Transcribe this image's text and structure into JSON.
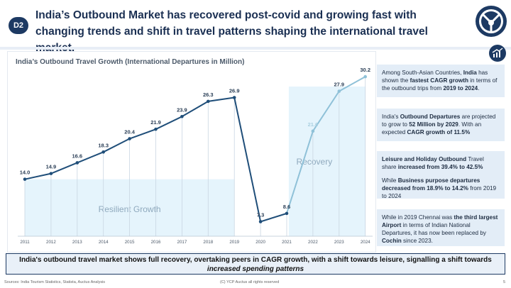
{
  "header": {
    "badge": "D2",
    "title": "India’s Outbound Market has recovered post-covid and growing fast with changing trends and shift in travel patterns shaping the international travel market."
  },
  "colors": {
    "navy": "#1d3a63",
    "line_dark": "#1f4e79",
    "line_light": "#8fc1d8",
    "shade": "#dcf0fb"
  },
  "chart_data": {
    "type": "line",
    "title": "India’s Outbound Travel Growth (International Departures in Million)",
    "x": [
      "2011",
      "2012",
      "2013",
      "2014",
      "2015",
      "2016",
      "2017",
      "2018",
      "2019",
      "2020",
      "2021",
      "2022",
      "2023",
      "2024"
    ],
    "values": [
      14.0,
      14.9,
      16.6,
      18.3,
      20.4,
      21.9,
      23.9,
      26.3,
      26.9,
      7.3,
      8.6,
      21.6,
      27.9,
      30.2
    ],
    "labels": [
      "14.0",
      "14.9",
      "16.6",
      "18.3",
      "20.4",
      "21.9",
      "23.9",
      "26.3",
      "26.9",
      "7.3",
      "8.6",
      "21.6",
      "27.9",
      "30.2"
    ],
    "ylim": [
      5,
      32
    ],
    "regions": [
      {
        "label": "Resilient Growth",
        "from": "2011",
        "to": "2019"
      },
      {
        "label": "Recovery",
        "from": "2022",
        "to": "2024"
      }
    ],
    "grid": false
  },
  "panels": [
    {
      "html_parts": [
        "Among South-Asian Countries, ",
        "India",
        " has shown the ",
        "fastest CAGR growth",
        " in terms of the outbound trips from ",
        "2019 to 2024",
        "."
      ]
    },
    {
      "html_parts": [
        "India's ",
        "Outbound Departures",
        " are projected to grow to ",
        "52 Million by 2029",
        ". With an expected ",
        "CAGR growth of 11.5%",
        ""
      ]
    },
    {
      "html_parts": [
        "Leisure and Holiday Outbound",
        " Travel share ",
        "increased from 39.4% to 42.5%",
        "",
        "",
        "",
        ""
      ],
      "second_parts": [
        "While ",
        "Business purpose departures decreased from 18.9% to 14.2%",
        " from 2019 to 2024"
      ]
    },
    {
      "html_parts": [
        "While in 2019 Chennai was ",
        "the third largest Airport",
        " in terms of Indian National Departures, it has now been replaced by ",
        "Cochin",
        " since 2023.",
        "",
        ""
      ]
    }
  ],
  "footer": {
    "banner_main": "India's outbound travel market shows full recovery, overtaking peers in CAGR growth, with a shift towards leisure, signalling a shift towards ",
    "banner_italic": "increased spending patterns",
    "sources": "Sources: India Tourism Statistics, Statista, Auctus Analysis",
    "copyright": "(C) YCP Auctus all rights reserved",
    "page": "5"
  }
}
